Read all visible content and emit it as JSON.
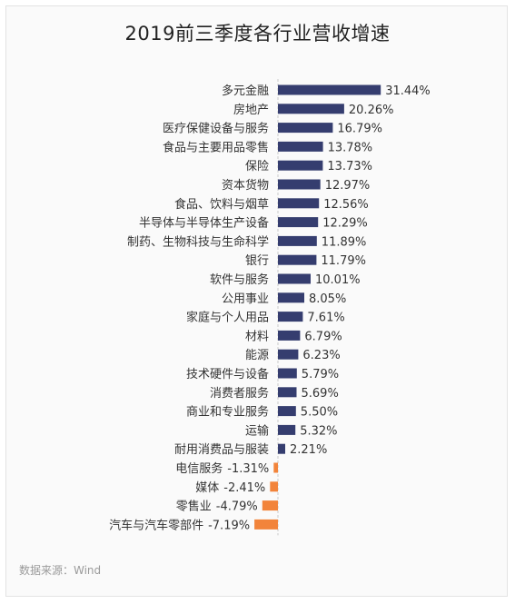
{
  "title": "2019前三季度各行业营收增速",
  "source": "数据来源：Wind",
  "watermark": "Wind",
  "colors": {
    "positive": "#353d6f",
    "negative": "#f2843b",
    "axis": "#c9c9c9",
    "text": "#333333"
  },
  "chart_data": {
    "type": "bar",
    "orientation": "horizontal",
    "title": "2019前三季度各行业营收增速",
    "categories": [
      "多元金融",
      "房地产",
      "医疗保健设备与服务",
      "食品与主要用品零售",
      "保险",
      "资本货物",
      "食品、饮料与烟草",
      "半导体与半导体生产设备",
      "制药、生物科技与生命科学",
      "银行",
      "软件与服务",
      "公用事业",
      "家庭与个人用品",
      "材料",
      "能源",
      "技术硬件与设备",
      "消费者服务",
      "商业和专业服务",
      "运输",
      "耐用消费品与服装",
      "电信服务",
      "媒体",
      "零售业",
      "汽车与汽车零部件"
    ],
    "values": [
      31.44,
      20.26,
      16.79,
      13.78,
      13.73,
      12.97,
      12.56,
      12.29,
      11.89,
      11.79,
      10.01,
      8.05,
      7.61,
      6.79,
      6.23,
      5.79,
      5.69,
      5.5,
      5.32,
      2.21,
      -1.31,
      -2.41,
      -4.79,
      -7.19
    ],
    "value_labels": [
      "31.44%",
      "20.26%",
      "16.79%",
      "13.78%",
      "13.73%",
      "12.97%",
      "12.56%",
      "12.29%",
      "11.89%",
      "11.79%",
      "10.01%",
      "8.05%",
      "7.61%",
      "6.79%",
      "6.23%",
      "5.79%",
      "5.69%",
      "5.50%",
      "5.32%",
      "2.21%",
      "-1.31%",
      "-2.41%",
      "-4.79%",
      "-7.19%"
    ],
    "unit": "%",
    "xlim": [
      -7.19,
      31.44
    ],
    "grid": false,
    "legend": "none"
  }
}
